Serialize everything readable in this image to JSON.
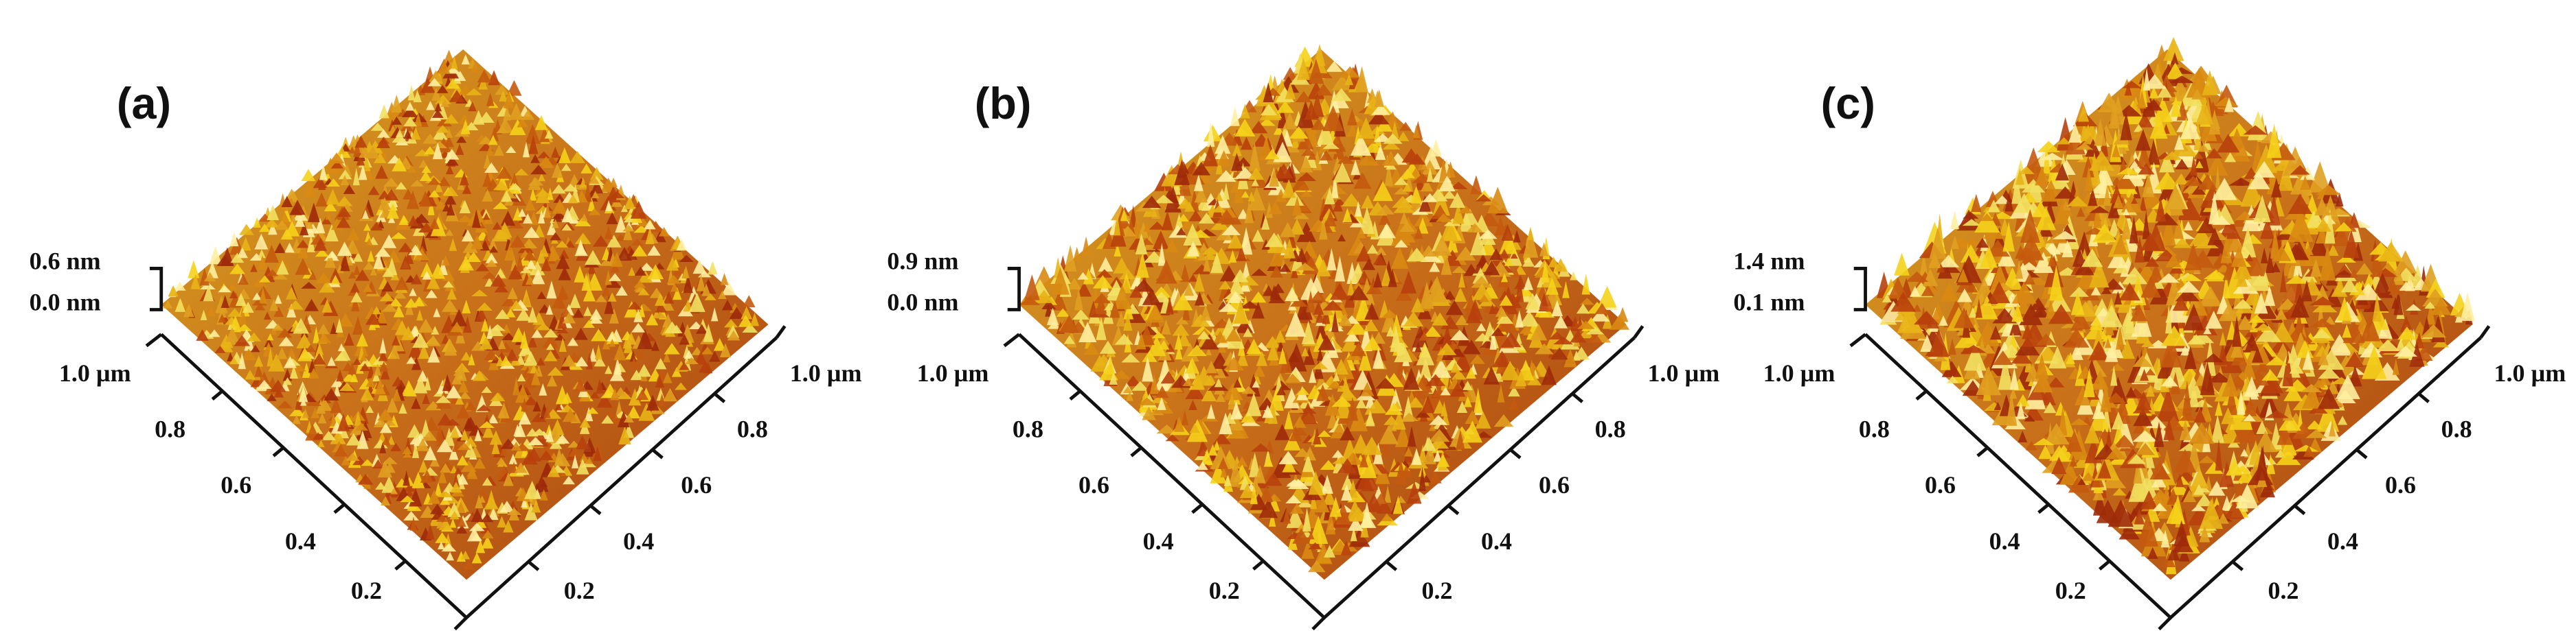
{
  "panels": [
    {
      "label": "(a)",
      "z_labels": [
        "0.6 nm",
        "0.0 nm"
      ],
      "left_axis": [
        "1.0 µm",
        "0.8",
        "0.6",
        "0.4",
        "0.2"
      ],
      "right_axis": [
        "1.0 µm",
        "0.8",
        "0.6",
        "0.4",
        "0.2"
      ]
    },
    {
      "label": "(b)",
      "z_labels": [
        "0.9 nm",
        "0.0 nm"
      ],
      "left_axis": [
        "1.0 µm",
        "0.8",
        "0.6",
        "0.4",
        "0.2"
      ],
      "right_axis": [
        "1.0 µm",
        "0.8",
        "0.6",
        "0.4",
        "0.2"
      ]
    },
    {
      "label": "(c)",
      "z_labels": [
        "1.4 nm",
        "0.1 nm"
      ],
      "left_axis": [
        "1.0 µm",
        "0.8",
        "0.6",
        "0.4",
        "0.2"
      ],
      "right_axis": [
        "1.0 µm",
        "0.8",
        "0.6",
        "0.4",
        "0.2"
      ]
    }
  ]
}
